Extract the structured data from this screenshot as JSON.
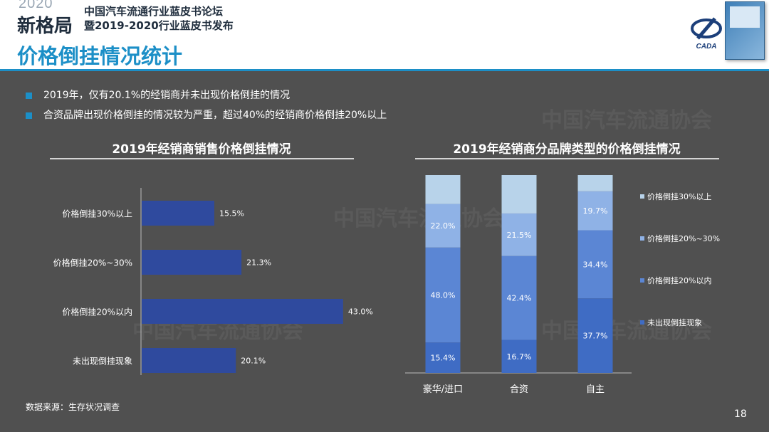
{
  "header": {
    "logo_year": "2020",
    "logo_name": "新格局",
    "forum_line1": "中国汽车流通行业蓝皮书论坛",
    "forum_line2": "暨2019-2020行业蓝皮书发布",
    "page_title": "价格倒挂情况统计",
    "cada_logo": "CADA"
  },
  "bullets": [
    "2019年，仅有20.1%的经销商并未出现价格倒挂的情况",
    "合资品牌出现价格倒挂的情况较为严重，超过40%的经销商价格倒挂20%以上"
  ],
  "watermark": "中国汽车流通协会",
  "footer": {
    "source": "数据来源：生存状况调查",
    "page_number": "18"
  },
  "chart_data": [
    {
      "type": "bar",
      "orientation": "horizontal",
      "title": "2019年经销商销售价格倒挂情况",
      "categories": [
        "价格倒挂30%以上",
        "价格倒挂20%~30%",
        "价格倒挂20%以内",
        "未出现倒挂现象"
      ],
      "values": [
        15.5,
        21.3,
        43.0,
        20.1
      ],
      "data_labels": [
        "15.5%",
        "21.3%",
        "43.0%",
        "20.1%"
      ],
      "xlim": [
        0,
        45
      ],
      "grid": false,
      "color": "#2f4a9e"
    },
    {
      "type": "bar",
      "stacked": true,
      "title": "2019年经销商分品牌类型的价格倒挂情况",
      "categories": [
        "豪华/进口",
        "合资",
        "自主"
      ],
      "series": [
        {
          "name": "未出现倒挂现象",
          "values": [
            15.4,
            16.7,
            37.7
          ],
          "labels": [
            "15.4%",
            "16.7%",
            "37.7%"
          ],
          "color": "#3f6cc4"
        },
        {
          "name": "价格倒挂20%以内",
          "values": [
            48.0,
            42.4,
            34.4
          ],
          "labels": [
            "48.0%",
            "42.4%",
            "34.4%"
          ],
          "color": "#5b86d4"
        },
        {
          "name": "价格倒挂20%~30%",
          "values": [
            22.0,
            21.5,
            19.7
          ],
          "labels": [
            "22.0%",
            "21.5%",
            "19.7%"
          ],
          "color": "#8fb2e6"
        },
        {
          "name": "价格倒挂30%以上",
          "values": [
            14.6,
            19.4,
            8.2
          ],
          "labels": [
            "",
            "",
            ""
          ],
          "color": "#b8d3ea"
        }
      ],
      "ylim": [
        0,
        100
      ],
      "legend": "right",
      "grid": false
    }
  ]
}
